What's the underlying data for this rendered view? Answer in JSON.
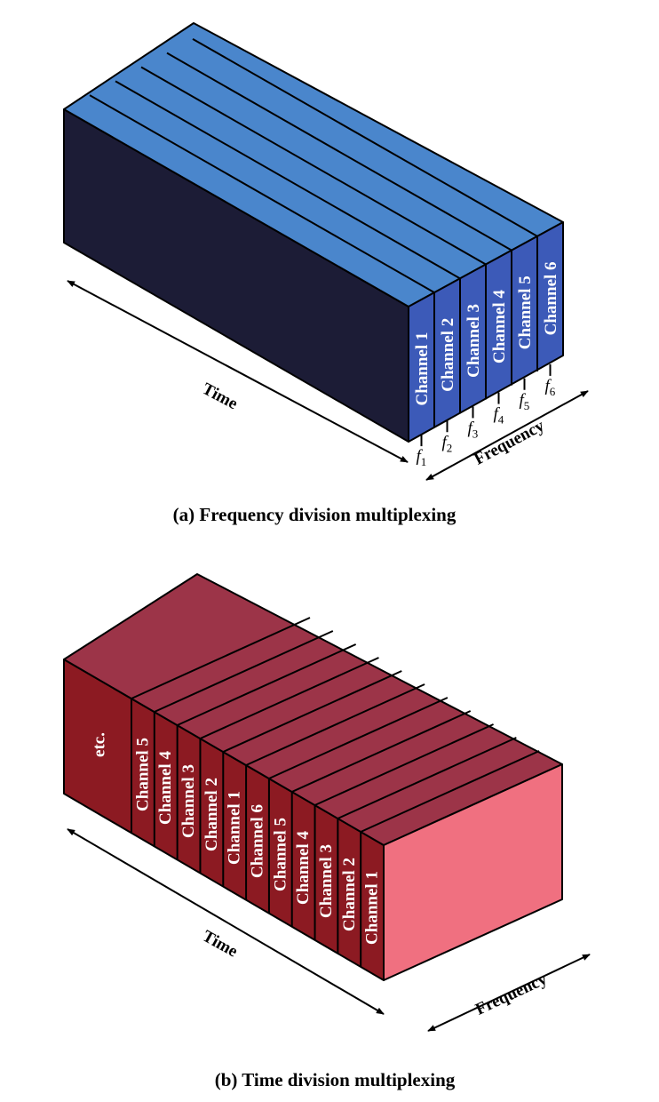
{
  "fdm": {
    "caption": "(a) Frequency division multiplexing",
    "time_label": "Time",
    "frequency_label": "Frequency",
    "channels": [
      "Channel 1",
      "Channel 2",
      "Channel 3",
      "Channel 4",
      "Channel 5",
      "Channel 6"
    ],
    "frequencies": [
      {
        "base": "f",
        "sub": "1"
      },
      {
        "base": "f",
        "sub": "2"
      },
      {
        "base": "f",
        "sub": "3"
      },
      {
        "base": "f",
        "sub": "4"
      },
      {
        "base": "f",
        "sub": "5"
      },
      {
        "base": "f",
        "sub": "6"
      }
    ],
    "colors": {
      "top": "#4a86cc",
      "side": "#1c1c36",
      "front": "#3c5ab8"
    }
  },
  "tdm": {
    "caption": "(b) Time division multiplexing",
    "time_label": "Time",
    "frequency_label": "Frequency",
    "slots": [
      "Channel 1",
      "Channel 2",
      "Channel 3",
      "Channel 4",
      "Channel 5",
      "Channel 6",
      "Channel 1",
      "Channel 2",
      "Channel 3",
      "Channel 4",
      "Channel 5",
      "etc."
    ],
    "colors": {
      "top": "#9c3448",
      "side": "#8c1a22",
      "front": "#f07080"
    }
  }
}
